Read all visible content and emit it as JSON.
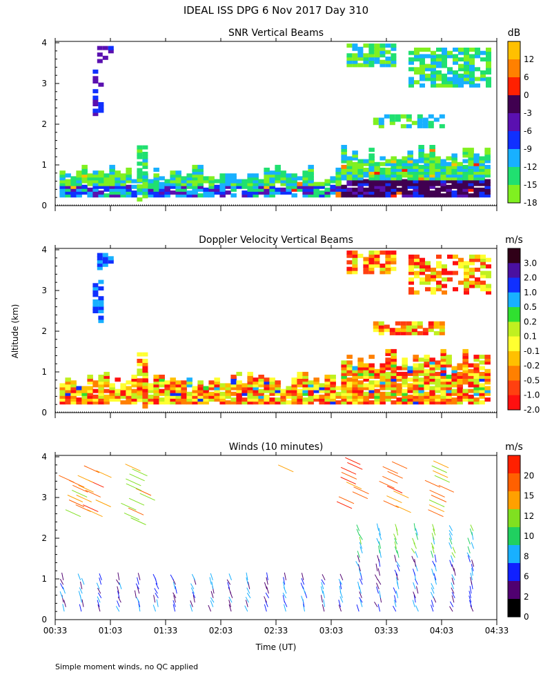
{
  "title": "IDEAL ISS DPG    6 Nov 2017 Day 310",
  "ylabel": "Altitude (km)",
  "xlabel": "Time (UT)",
  "footnote": "Simple moment winds, no QC applied",
  "chart_data": [
    {
      "type": "heatmap",
      "title": "SNR Vertical Beams",
      "unit": "dB",
      "x_range": [
        "00:33",
        "04:33"
      ],
      "ylim": [
        0,
        4
      ],
      "y_ticks": [
        "0",
        "1",
        "2",
        "3",
        "4"
      ],
      "x_ticks": [
        "00:33",
        "01:03",
        "01:33",
        "02:03",
        "02:33",
        "03:03",
        "03:33",
        "04:03",
        "04:33"
      ],
      "colorbar": {
        "labels": [
          "12",
          "6",
          "0",
          "-3",
          "-6",
          "-9",
          "-12",
          "-15",
          "-18"
        ],
        "colors": [
          "#ffc000",
          "#ff8000",
          "#ff2000",
          "#400050",
          "#5a10b0",
          "#1030ff",
          "#18b0ff",
          "#20e070",
          "#80f020"
        ]
      }
    },
    {
      "type": "heatmap",
      "title": "Doppler Velocity Vertical Beams",
      "unit": "m/s",
      "x_range": [
        "00:33",
        "04:33"
      ],
      "ylim": [
        0,
        4
      ],
      "y_ticks": [
        "0",
        "1",
        "2",
        "3",
        "4"
      ],
      "x_ticks": [
        "00:33",
        "01:03",
        "01:33",
        "02:03",
        "02:33",
        "03:03",
        "03:33",
        "04:03",
        "04:33"
      ],
      "colorbar": {
        "labels": [
          "3.0",
          "2.0",
          "1.0",
          "0.5",
          "0.2",
          "0.1",
          "-0.1",
          "-0.2",
          "-0.5",
          "-1.0",
          "-2.0"
        ],
        "colors": [
          "#300018",
          "#4a10a0",
          "#1030ff",
          "#18b0ff",
          "#30e030",
          "#c0f020",
          "#ffff30",
          "#ffc000",
          "#ff8000",
          "#ff4010",
          "#ff1010"
        ]
      }
    },
    {
      "type": "scatter",
      "title": "Winds (10 minutes)",
      "unit": "m/s",
      "x_range": [
        "00:33",
        "04:33"
      ],
      "ylim": [
        0,
        4
      ],
      "y_ticks": [
        "0",
        "1",
        "2",
        "3",
        "4"
      ],
      "x_ticks": [
        "00:33",
        "01:03",
        "01:33",
        "02:03",
        "02:33",
        "03:03",
        "03:33",
        "04:03",
        "04:33"
      ],
      "colorbar": {
        "labels": [
          "20",
          "15",
          "12",
          "10",
          "8",
          "6",
          "2",
          "0"
        ],
        "colors": [
          "#ff2000",
          "#ff6000",
          "#ffa000",
          "#80e020",
          "#20d060",
          "#18b0ff",
          "#1020ff",
          "#500070",
          "#000000"
        ]
      }
    }
  ]
}
